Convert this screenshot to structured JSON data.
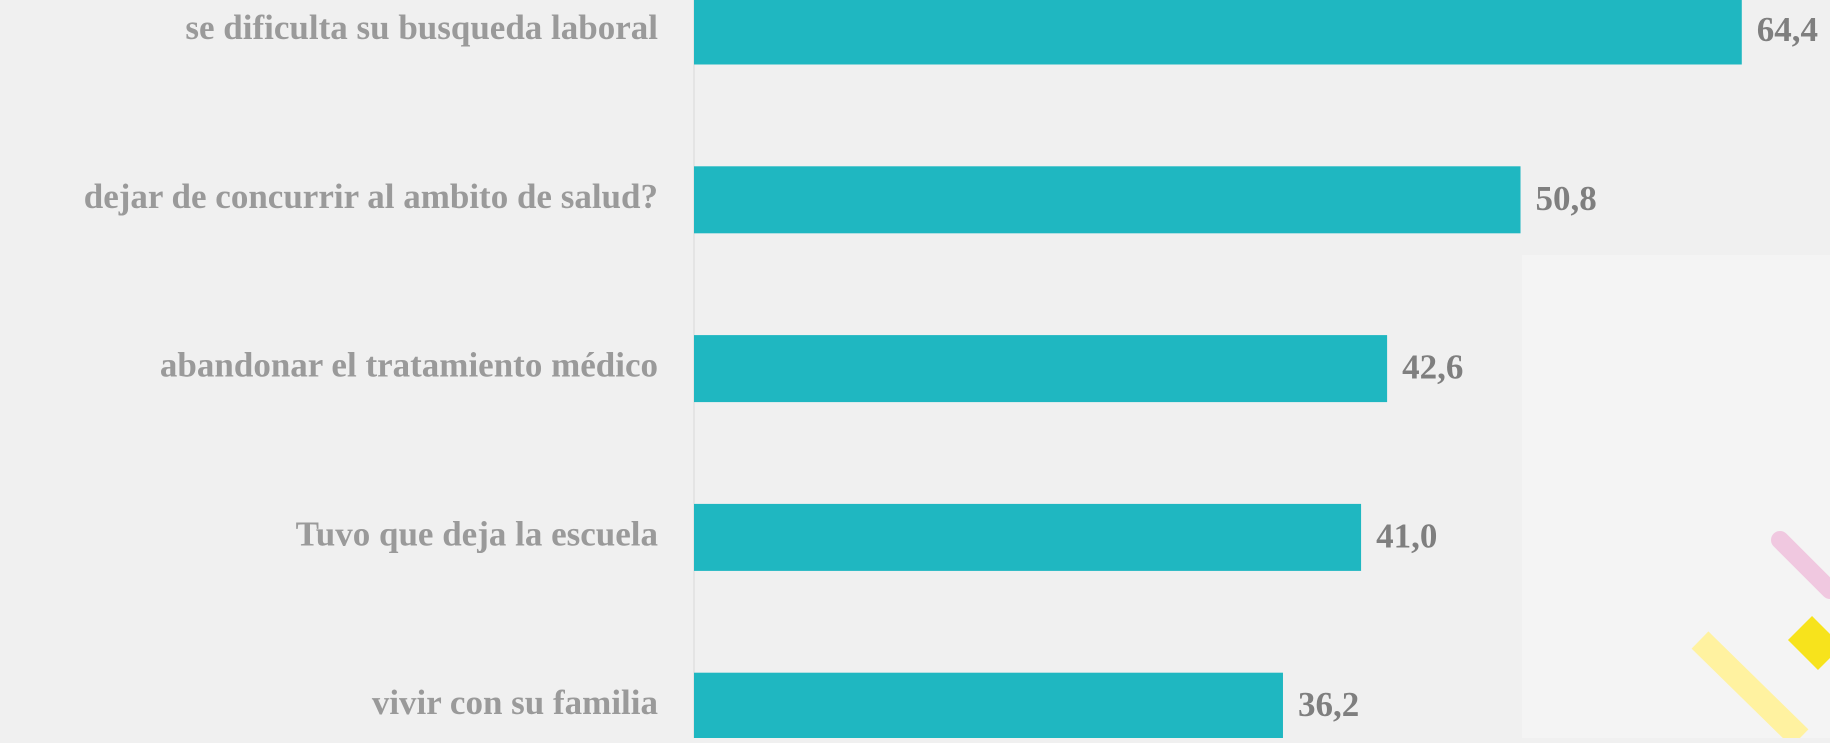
{
  "chart_data": {
    "type": "bar",
    "orientation": "horizontal",
    "categories": [
      "se dificulta su busqueda laboral",
      "dejar de concurrir al ambito de salud?",
      "abandonar el tratamiento médico",
      "Tuvo que deja la escuela",
      "vivir con su familia"
    ],
    "values": [
      64.4,
      50.8,
      42.6,
      41.0,
      36.2
    ],
    "value_labels": [
      "64,4",
      "50,8",
      "42,6",
      "41,0",
      "36,2"
    ],
    "color": "#1fb7c1"
  }
}
